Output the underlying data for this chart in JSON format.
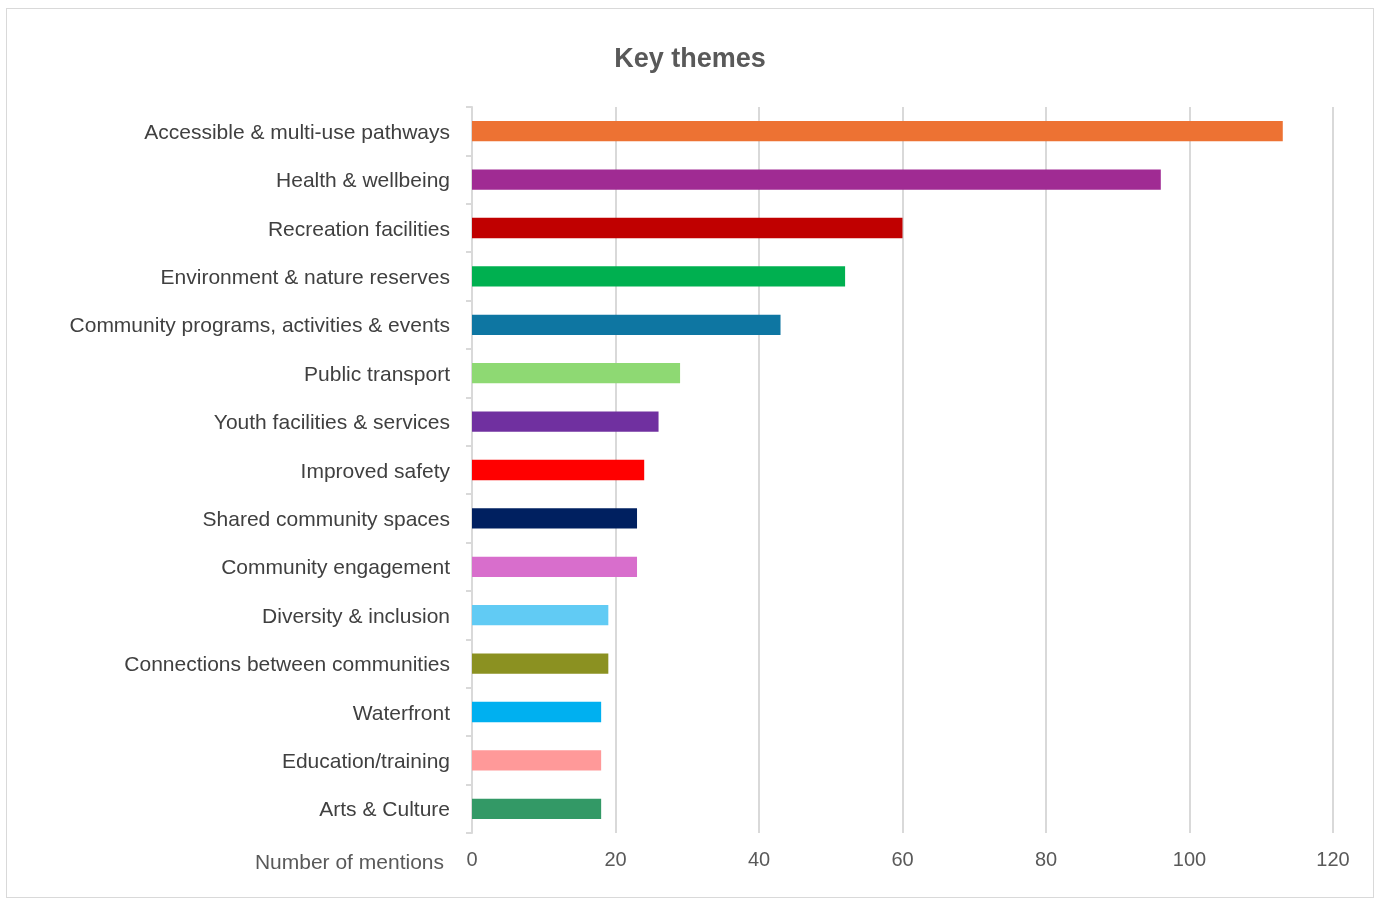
{
  "chart_data": {
    "type": "bar",
    "orientation": "horizontal",
    "title": "Key themes",
    "xlabel": "Number of mentions",
    "categories": [
      "Accessible & multi-use pathways",
      "Health & wellbeing",
      "Recreation facilities",
      "Environment & nature reserves",
      "Community programs, activities & events",
      "Public transport",
      "Youth facilities & services",
      "Improved safety",
      "Shared community spaces",
      "Community engagement",
      "Diversity & inclusion",
      "Connections between communities",
      "Waterfront",
      "Education/training",
      "Arts & Culture"
    ],
    "values": [
      113,
      96,
      60,
      52,
      43,
      29,
      26,
      24,
      23,
      23,
      19,
      19,
      18,
      18,
      18
    ],
    "colors": [
      "#ed7233",
      "#a02b93",
      "#c00000",
      "#00b050",
      "#0e76a2",
      "#8ed973",
      "#7030a0",
      "#ff0000",
      "#002060",
      "#d86ecc",
      "#61cbf4",
      "#8b9121",
      "#00b0f0",
      "#ff9999",
      "#339966"
    ],
    "xlim": [
      0,
      120
    ],
    "xticks": [
      0,
      20,
      40,
      60,
      80,
      100,
      120
    ],
    "grid": "x"
  }
}
